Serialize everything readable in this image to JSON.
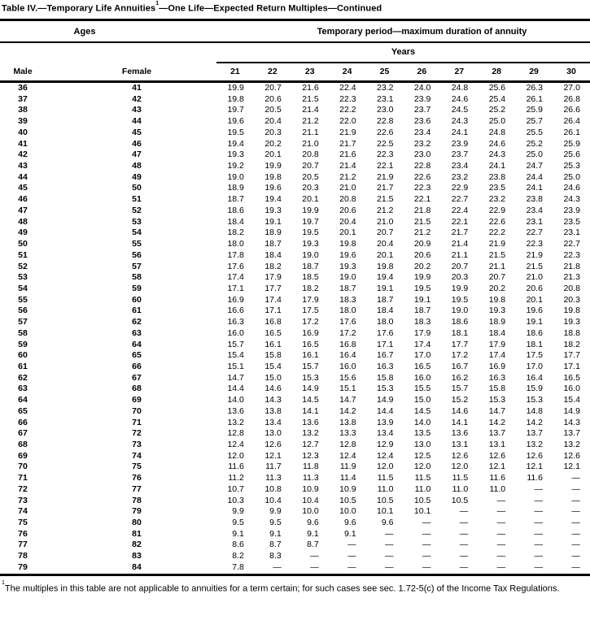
{
  "title": {
    "prefix": "Table IV.—Temporary Life Annuities",
    "superscript": "1",
    "suffix": "—One Life—Expected Return Multiples—Continued"
  },
  "header": {
    "ages_label": "Ages",
    "period_label": "Temporary period—maximum duration of annuity",
    "years_label": "Years",
    "male_label": "Male",
    "female_label": "Female",
    "year_columns": [
      "21",
      "22",
      "23",
      "24",
      "25",
      "26",
      "27",
      "28",
      "29",
      "30"
    ]
  },
  "rows": [
    {
      "male": "36",
      "female": "41",
      "values": [
        "19.9",
        "20.7",
        "21.6",
        "22.4",
        "23.2",
        "24.0",
        "24.8",
        "25.6",
        "26.3",
        "27.0"
      ]
    },
    {
      "male": "37",
      "female": "42",
      "values": [
        "19.8",
        "20.6",
        "21.5",
        "22.3",
        "23.1",
        "23.9",
        "24.6",
        "25.4",
        "26.1",
        "26.8"
      ]
    },
    {
      "male": "38",
      "female": "43",
      "values": [
        "19.7",
        "20.5",
        "21.4",
        "22.2",
        "23.0",
        "23.7",
        "24.5",
        "25.2",
        "25.9",
        "26.6"
      ]
    },
    {
      "male": "39",
      "female": "44",
      "values": [
        "19.6",
        "20.4",
        "21.2",
        "22.0",
        "22.8",
        "23.6",
        "24.3",
        "25.0",
        "25.7",
        "26.4"
      ]
    },
    {
      "male": "40",
      "female": "45",
      "values": [
        "19.5",
        "20.3",
        "21.1",
        "21.9",
        "22.6",
        "23.4",
        "24.1",
        "24.8",
        "25.5",
        "26.1"
      ]
    },
    {
      "male": "41",
      "female": "46",
      "values": [
        "19.4",
        "20.2",
        "21.0",
        "21.7",
        "22.5",
        "23.2",
        "23.9",
        "24.6",
        "25.2",
        "25.9"
      ]
    },
    {
      "male": "42",
      "female": "47",
      "values": [
        "19.3",
        "20.1",
        "20.8",
        "21.6",
        "22.3",
        "23.0",
        "23.7",
        "24.3",
        "25.0",
        "25.6"
      ]
    },
    {
      "male": "43",
      "female": "48",
      "values": [
        "19.2",
        "19.9",
        "20.7",
        "21.4",
        "22.1",
        "22.8",
        "23.4",
        "24.1",
        "24.7",
        "25.3"
      ]
    },
    {
      "male": "44",
      "female": "49",
      "values": [
        "19.0",
        "19.8",
        "20.5",
        "21.2",
        "21.9",
        "22.6",
        "23.2",
        "23.8",
        "24.4",
        "25.0"
      ]
    },
    {
      "male": "45",
      "female": "50",
      "values": [
        "18.9",
        "19.6",
        "20.3",
        "21.0",
        "21.7",
        "22.3",
        "22.9",
        "23.5",
        "24.1",
        "24.6"
      ]
    },
    {
      "male": "46",
      "female": "51",
      "values": [
        "18.7",
        "19.4",
        "20.1",
        "20.8",
        "21.5",
        "22.1",
        "22.7",
        "23.2",
        "23.8",
        "24.3"
      ]
    },
    {
      "male": "47",
      "female": "52",
      "values": [
        "18.6",
        "19.3",
        "19.9",
        "20.6",
        "21.2",
        "21.8",
        "22.4",
        "22.9",
        "23.4",
        "23.9"
      ]
    },
    {
      "male": "48",
      "female": "53",
      "values": [
        "18.4",
        "19.1",
        "19.7",
        "20.4",
        "21.0",
        "21.5",
        "22.1",
        "22.6",
        "23.1",
        "23.5"
      ]
    },
    {
      "male": "49",
      "female": "54",
      "values": [
        "18.2",
        "18.9",
        "19.5",
        "20.1",
        "20.7",
        "21.2",
        "21.7",
        "22.2",
        "22.7",
        "23.1"
      ]
    },
    {
      "male": "50",
      "female": "55",
      "values": [
        "18.0",
        "18.7",
        "19.3",
        "19.8",
        "20.4",
        "20.9",
        "21.4",
        "21.9",
        "22.3",
        "22.7"
      ]
    },
    {
      "male": "51",
      "female": "56",
      "values": [
        "17.8",
        "18.4",
        "19.0",
        "19.6",
        "20.1",
        "20.6",
        "21.1",
        "21.5",
        "21.9",
        "22.3"
      ]
    },
    {
      "male": "52",
      "female": "57",
      "values": [
        "17.6",
        "18.2",
        "18.7",
        "19.3",
        "19.8",
        "20.2",
        "20.7",
        "21.1",
        "21.5",
        "21.8"
      ]
    },
    {
      "male": "53",
      "female": "58",
      "values": [
        "17.4",
        "17.9",
        "18.5",
        "19.0",
        "19.4",
        "19.9",
        "20.3",
        "20.7",
        "21.0",
        "21.3"
      ]
    },
    {
      "male": "54",
      "female": "59",
      "values": [
        "17.1",
        "17.7",
        "18.2",
        "18.7",
        "19.1",
        "19.5",
        "19.9",
        "20.2",
        "20.6",
        "20.8"
      ]
    },
    {
      "male": "55",
      "female": "60",
      "values": [
        "16.9",
        "17.4",
        "17.9",
        "18.3",
        "18.7",
        "19.1",
        "19.5",
        "19.8",
        "20.1",
        "20.3"
      ]
    },
    {
      "male": "56",
      "female": "61",
      "values": [
        "16.6",
        "17.1",
        "17.5",
        "18.0",
        "18.4",
        "18.7",
        "19.0",
        "19.3",
        "19.6",
        "19.8"
      ]
    },
    {
      "male": "57",
      "female": "62",
      "values": [
        "16.3",
        "16.8",
        "17.2",
        "17.6",
        "18.0",
        "18.3",
        "18.6",
        "18.9",
        "19.1",
        "19.3"
      ]
    },
    {
      "male": "58",
      "female": "63",
      "values": [
        "16.0",
        "16.5",
        "16.9",
        "17.2",
        "17.6",
        "17.9",
        "18.1",
        "18.4",
        "18.6",
        "18.8"
      ]
    },
    {
      "male": "59",
      "female": "64",
      "values": [
        "15.7",
        "16.1",
        "16.5",
        "16.8",
        "17.1",
        "17.4",
        "17.7",
        "17.9",
        "18.1",
        "18.2"
      ]
    },
    {
      "male": "60",
      "female": "65",
      "values": [
        "15.4",
        "15.8",
        "16.1",
        "16.4",
        "16.7",
        "17.0",
        "17.2",
        "17.4",
        "17.5",
        "17.7"
      ]
    },
    {
      "male": "61",
      "female": "66",
      "values": [
        "15.1",
        "15.4",
        "15.7",
        "16.0",
        "16.3",
        "16.5",
        "16.7",
        "16.9",
        "17.0",
        "17.1"
      ]
    },
    {
      "male": "62",
      "female": "67",
      "values": [
        "14.7",
        "15.0",
        "15.3",
        "15.6",
        "15.8",
        "16.0",
        "16.2",
        "16.3",
        "16.4",
        "16.5"
      ]
    },
    {
      "male": "63",
      "female": "68",
      "values": [
        "14.4",
        "14.6",
        "14.9",
        "15.1",
        "15.3",
        "15.5",
        "15.7",
        "15.8",
        "15.9",
        "16.0"
      ]
    },
    {
      "male": "64",
      "female": "69",
      "values": [
        "14.0",
        "14.3",
        "14.5",
        "14.7",
        "14.9",
        "15.0",
        "15.2",
        "15.3",
        "15.3",
        "15.4"
      ]
    },
    {
      "male": "65",
      "female": "70",
      "values": [
        "13.6",
        "13.8",
        "14.1",
        "14.2",
        "14.4",
        "14.5",
        "14.6",
        "14.7",
        "14.8",
        "14.9"
      ]
    },
    {
      "male": "66",
      "female": "71",
      "values": [
        "13.2",
        "13.4",
        "13.6",
        "13.8",
        "13.9",
        "14.0",
        "14.1",
        "14.2",
        "14.2",
        "14.3"
      ]
    },
    {
      "male": "67",
      "female": "72",
      "values": [
        "12.8",
        "13.0",
        "13.2",
        "13.3",
        "13.4",
        "13.5",
        "13.6",
        "13.7",
        "13.7",
        "13.7"
      ]
    },
    {
      "male": "68",
      "female": "73",
      "values": [
        "12.4",
        "12.6",
        "12.7",
        "12.8",
        "12.9",
        "13.0",
        "13.1",
        "13.1",
        "13.2",
        "13.2"
      ]
    },
    {
      "male": "69",
      "female": "74",
      "values": [
        "12.0",
        "12.1",
        "12.3",
        "12.4",
        "12.4",
        "12.5",
        "12.6",
        "12.6",
        "12.6",
        "12.6"
      ]
    },
    {
      "male": "70",
      "female": "75",
      "values": [
        "11.6",
        "11.7",
        "11.8",
        "11.9",
        "12.0",
        "12.0",
        "12.0",
        "12.1",
        "12.1",
        "12.1"
      ]
    },
    {
      "male": "71",
      "female": "76",
      "values": [
        "11.2",
        "11.3",
        "11.3",
        "11.4",
        "11.5",
        "11.5",
        "11.5",
        "11.6",
        "11.6",
        "—"
      ]
    },
    {
      "male": "72",
      "female": "77",
      "values": [
        "10.7",
        "10.8",
        "10.9",
        "10.9",
        "11.0",
        "11.0",
        "11.0",
        "11.0",
        "—",
        "—"
      ]
    },
    {
      "male": "73",
      "female": "78",
      "values": [
        "10.3",
        "10.4",
        "10.4",
        "10.5",
        "10.5",
        "10.5",
        "10.5",
        "—",
        "—",
        "—"
      ]
    },
    {
      "male": "74",
      "female": "79",
      "values": [
        "9.9",
        "9.9",
        "10.0",
        "10.0",
        "10.1",
        "10.1",
        "—",
        "—",
        "—",
        "—"
      ]
    },
    {
      "male": "75",
      "female": "80",
      "values": [
        "9.5",
        "9.5",
        "9.6",
        "9.6",
        "9.6",
        "—",
        "—",
        "—",
        "—",
        "—"
      ]
    },
    {
      "male": "76",
      "female": "81",
      "values": [
        "9.1",
        "9.1",
        "9.1",
        "9.1",
        "—",
        "—",
        "—",
        "—",
        "—",
        "—"
      ]
    },
    {
      "male": "77",
      "female": "82",
      "values": [
        "8.6",
        "8.7",
        "8.7",
        "—",
        "—",
        "—",
        "—",
        "—",
        "—",
        "—"
      ]
    },
    {
      "male": "78",
      "female": "83",
      "values": [
        "8.2",
        "8.3",
        "—",
        "—",
        "—",
        "—",
        "—",
        "—",
        "—",
        "—"
      ]
    },
    {
      "male": "79",
      "female": "84",
      "values": [
        "7.8",
        "—",
        "—",
        "—",
        "—",
        "—",
        "—",
        "—",
        "—",
        "—"
      ]
    }
  ],
  "footnote": {
    "marker": "1",
    "text": "The multiples in this table are not applicable to annuities for a term certain; for such cases see sec. 1.72-5(c) of the Income Tax Regulations."
  },
  "colors": {
    "ink": "#000000",
    "paper": "#ffffff"
  }
}
